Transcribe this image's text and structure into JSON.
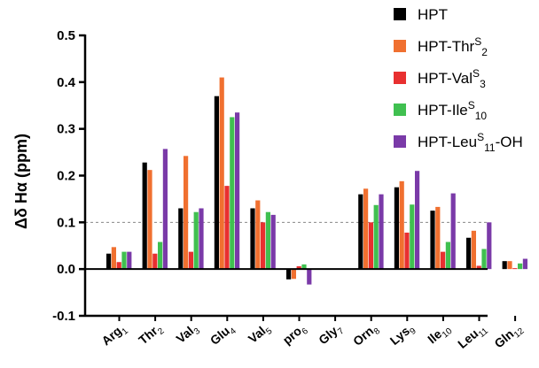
{
  "chart_data": {
    "type": "bar",
    "ylabel": "Δδ Hα (ppm)",
    "ylim": [
      -0.1,
      0.5
    ],
    "yticks": [
      "-0.1",
      "0.0",
      "0.1",
      "0.2",
      "0.3",
      "0.4",
      "0.5"
    ],
    "reference_line": 0.1,
    "legend_position": "top-right",
    "categories": [
      {
        "base": "Arg",
        "sub": "1"
      },
      {
        "base": "Thr",
        "sub": "2"
      },
      {
        "base": "Val",
        "sub": "3"
      },
      {
        "base": "Glu",
        "sub": "4"
      },
      {
        "base": "Val",
        "sub": "5"
      },
      {
        "base": "pro",
        "sub": "6"
      },
      {
        "base": "Gly",
        "sub": "7"
      },
      {
        "base": "Orn",
        "sub": "8"
      },
      {
        "base": "Lys",
        "sub": "9"
      },
      {
        "base": "Ile",
        "sub": "10"
      },
      {
        "base": "Leu",
        "sub": "11"
      },
      {
        "base": "Gln",
        "sub": "12"
      }
    ],
    "series": [
      {
        "name": "HPT",
        "label_parts": [
          "HPT"
        ],
        "color": "#000000",
        "values": [
          0.033,
          0.228,
          0.13,
          0.37,
          0.13,
          -0.022,
          0.0,
          0.16,
          0.175,
          0.125,
          0.067,
          0.017
        ]
      },
      {
        "name": "HPT-ThrS2",
        "label_parts": [
          "HPT-Thr",
          "S",
          "2"
        ],
        "color": "#f07030",
        "values": [
          0.047,
          0.212,
          0.242,
          0.41,
          0.147,
          -0.021,
          0.0,
          0.172,
          0.188,
          0.133,
          0.082,
          0.017
        ]
      },
      {
        "name": "HPT-ValS3",
        "label_parts": [
          "HPT-Val",
          "S",
          "3"
        ],
        "color": "#e83030",
        "values": [
          0.015,
          0.033,
          0.037,
          0.178,
          0.1,
          0.006,
          0.0,
          0.1,
          0.078,
          0.037,
          0.007,
          0.002
        ]
      },
      {
        "name": "HPT-IleS10",
        "label_parts": [
          "HPT-Ile",
          "S",
          "10"
        ],
        "color": "#40c050",
        "values": [
          0.037,
          0.058,
          0.122,
          0.325,
          0.122,
          0.01,
          0.0,
          0.137,
          0.138,
          0.058,
          0.043,
          0.012
        ]
      },
      {
        "name": "HPT-LeuS11-OH",
        "label_parts": [
          "HPT-Leu",
          "S",
          "11",
          "-OH"
        ],
        "color": "#7a3aa8",
        "values": [
          0.037,
          0.257,
          0.13,
          0.335,
          0.116,
          -0.033,
          0.0,
          0.16,
          0.21,
          0.162,
          0.1,
          0.022
        ]
      }
    ]
  }
}
